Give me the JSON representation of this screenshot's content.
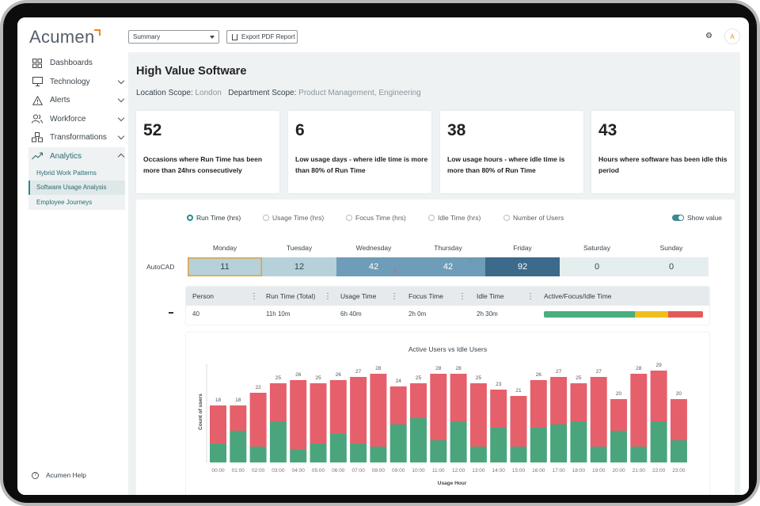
{
  "app": {
    "brand": "Acumen"
  },
  "sidebar": {
    "items": [
      {
        "label": "Dashboards",
        "icon": "grid-icon",
        "chevron": false
      },
      {
        "label": "Technology",
        "icon": "monitor-icon",
        "chevron": true
      },
      {
        "label": "Alerts",
        "icon": "alert-triangle-icon",
        "chevron": true
      },
      {
        "label": "Workforce",
        "icon": "users-icon",
        "chevron": true
      },
      {
        "label": "Transformations",
        "icon": "cubes-icon",
        "chevron": true
      },
      {
        "label": "Analytics",
        "icon": "trend-icon",
        "chevron": true,
        "expanded": true
      }
    ],
    "analytics_sub": [
      {
        "label": "Hybrid Work Patterns",
        "selected": false
      },
      {
        "label": "Software Usage Analysis",
        "selected": true
      },
      {
        "label": "Employee Journeys",
        "selected": false
      }
    ],
    "help_label": "Acumen Help"
  },
  "toolbar": {
    "view_select": "Summary",
    "export_label": "Export PDF Report",
    "avatar_initial": "A"
  },
  "page": {
    "title": "High Value Software",
    "location_scope_label": "Location Scope:",
    "location_scope_value": "London",
    "department_scope_label": "Department Scope:",
    "department_scope_value": "Product Management, Engineering"
  },
  "cards": [
    {
      "value": "52",
      "desc": "Occasions where Run Time has been more than 24hrs consecutively"
    },
    {
      "value": "6",
      "desc": "Low usage days - where idle time is more than 80% of Run Time"
    },
    {
      "value": "38",
      "desc": "Low usage hours - where idle time is more than 80% of Run Time"
    },
    {
      "value": "43",
      "desc": "Hours where software has been idle this period"
    }
  ],
  "metric_options": [
    {
      "label": "Run Time (hrs)",
      "selected": true
    },
    {
      "label": "Usage Time (hrs)",
      "selected": false
    },
    {
      "label": "Focus Time (hrs)",
      "selected": false
    },
    {
      "label": "Idle Time (hrs)",
      "selected": false
    },
    {
      "label": "Number of Users",
      "selected": false
    }
  ],
  "show_value_label": "Show value",
  "heatmap": {
    "row_label": "AutoCAD",
    "days": [
      "Monday",
      "Tuesday",
      "Wednesday",
      "Thursday",
      "Friday",
      "Saturday",
      "Sunday"
    ],
    "values": [
      "11",
      "12",
      "42",
      "42",
      "92",
      "0",
      "0"
    ],
    "colors": [
      "#b6d1d9",
      "#b6d1d9",
      "#6f9cb8",
      "#6f9cb8",
      "#3b6a8b",
      "#e5eeef",
      "#e5eeef"
    ],
    "selected_index": 0,
    "selected_border": "#e0a23a",
    "wednesday_icon_color": "#e25b5b",
    "thursday_icon_color": "#49a57a"
  },
  "table": {
    "columns": [
      "Person",
      "Run Time (Total)",
      "Usage Time",
      "Focus Time",
      "Idle Time",
      "Active/Focus/Idle Time"
    ],
    "row": [
      "40",
      "11h 10m",
      "6h 40m",
      "2h 0m",
      "2h 30m"
    ],
    "bar_fractions": [
      0.57,
      0.21,
      0.22
    ],
    "bar_colors": [
      "#4aae7e",
      "#f2be1e",
      "#e45a5a"
    ]
  },
  "chart_data": {
    "type": "bar",
    "title": "Active Users vs Idle Users",
    "xlabel": "Usage Hour",
    "ylabel": "Count of users",
    "categories": [
      "00:00",
      "01:00",
      "02:00",
      "03:00",
      "04:00",
      "05:00",
      "06:00",
      "07:00",
      "08:00",
      "09:00",
      "10:00",
      "11:00",
      "12:00",
      "13:00",
      "14:00",
      "15:00",
      "16:00",
      "17:00",
      "18:00",
      "19:00",
      "20:00",
      "21:00",
      "22:00",
      "23:00"
    ],
    "totals": [
      18,
      18,
      22,
      25,
      26,
      25,
      26,
      27,
      28,
      24,
      25,
      28,
      28,
      25,
      23,
      21,
      26,
      27,
      25,
      27,
      20,
      28,
      29,
      20
    ],
    "series": [
      {
        "values": [
          6,
          10,
          5,
          13,
          4,
          6,
          9,
          6,
          5,
          12,
          14,
          7,
          13,
          5,
          11,
          5,
          11,
          12,
          13,
          5,
          10,
          5,
          13,
          7
        ],
        "color": "#4aa57c"
      },
      {
        "values": [
          12,
          8,
          17,
          12,
          22,
          19,
          17,
          21,
          23,
          12,
          11,
          21,
          15,
          20,
          12,
          16,
          15,
          15,
          12,
          22,
          10,
          23,
          16,
          13
        ],
        "color": "#e6606c"
      }
    ],
    "ylim": [
      0,
      30
    ]
  }
}
